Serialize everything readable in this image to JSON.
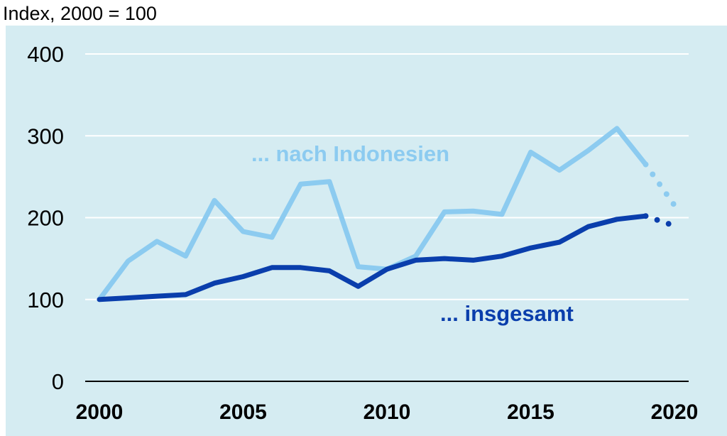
{
  "chart_data": {
    "type": "line",
    "unit_label": "Index, 2000 = 100",
    "xlim": [
      2000,
      2020
    ],
    "ylim": [
      0,
      400
    ],
    "yticks": [
      0,
      100,
      200,
      300,
      400
    ],
    "xticks": [
      2000,
      2005,
      2010,
      2015,
      2020
    ],
    "grid": true,
    "background_color": "#d5ecf2",
    "series": [
      {
        "name": "... nach Indonesien",
        "color": "#8ccbf0",
        "x": [
          2000,
          2001,
          2002,
          2003,
          2004,
          2005,
          2006,
          2007,
          2008,
          2009,
          2010,
          2011,
          2012,
          2013,
          2014,
          2015,
          2016,
          2017,
          2018,
          2019
        ],
        "values": [
          100,
          147,
          171,
          153,
          221,
          183,
          176,
          241,
          244,
          140,
          137,
          153,
          207,
          208,
          204,
          280,
          258,
          282,
          309,
          265
        ],
        "projection": {
          "x": [
            2019,
            2020
          ],
          "values": [
            265,
            215
          ]
        }
      },
      {
        "name": "... insgesamt",
        "color": "#0a3eac",
        "x": [
          2000,
          2001,
          2002,
          2003,
          2004,
          2005,
          2006,
          2007,
          2008,
          2009,
          2010,
          2011,
          2012,
          2013,
          2014,
          2015,
          2016,
          2017,
          2018,
          2019
        ],
        "values": [
          100,
          102,
          104,
          106,
          120,
          128,
          139,
          139,
          135,
          116,
          137,
          148,
          150,
          148,
          153,
          163,
          170,
          189,
          198,
          202
        ],
        "projection": {
          "x": [
            2019,
            2020
          ],
          "values": [
            202,
            190
          ]
        }
      }
    ]
  }
}
